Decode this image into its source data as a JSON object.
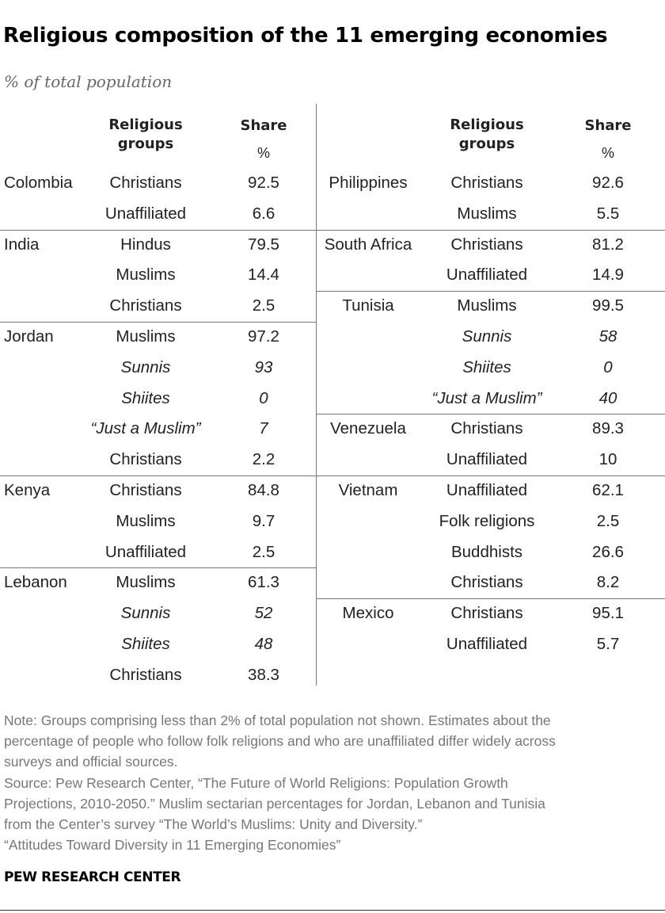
{
  "title": "Religious composition of the 11 emerging economies",
  "subtitle": "% of total population",
  "headers": {
    "groups": "Religious groups",
    "share": "Share",
    "unit": "%"
  },
  "left": [
    {
      "country": "Colombia",
      "rows": [
        {
          "group": "Christians",
          "share": "92.5",
          "italic": false
        },
        {
          "group": "Unaffiliated",
          "share": "6.6",
          "italic": false
        }
      ]
    },
    {
      "country": "India",
      "rows": [
        {
          "group": "Hindus",
          "share": "79.5",
          "italic": false
        },
        {
          "group": "Muslims",
          "share": "14.4",
          "italic": false
        },
        {
          "group": "Christians",
          "share": "2.5",
          "italic": false
        }
      ]
    },
    {
      "country": "Jordan",
      "rows": [
        {
          "group": "Muslims",
          "share": "97.2",
          "italic": false
        },
        {
          "group": "Sunnis",
          "share": "93",
          "italic": true
        },
        {
          "group": "Shiites",
          "share": "0",
          "italic": true
        },
        {
          "group": "“Just a Muslim”",
          "share": "7",
          "italic": true
        },
        {
          "group": "Christians",
          "share": "2.2",
          "italic": false
        }
      ]
    },
    {
      "country": "Kenya",
      "rows": [
        {
          "group": "Christians",
          "share": "84.8",
          "italic": false
        },
        {
          "group": "Muslims",
          "share": "9.7",
          "italic": false
        },
        {
          "group": "Unaffiliated",
          "share": "2.5",
          "italic": false
        }
      ]
    },
    {
      "country": "Lebanon",
      "rows": [
        {
          "group": "Muslims",
          "share": "61.3",
          "italic": false
        },
        {
          "group": "Sunnis",
          "share": "52",
          "italic": true
        },
        {
          "group": "Shiites",
          "share": "48",
          "italic": true
        },
        {
          "group": "Christians",
          "share": "38.3",
          "italic": false
        }
      ]
    }
  ],
  "right": [
    {
      "country": "Philippines",
      "rows": [
        {
          "group": "Christians",
          "share": "92.6",
          "italic": false
        },
        {
          "group": "Muslims",
          "share": "5.5",
          "italic": false
        }
      ]
    },
    {
      "country": "South Africa",
      "rows": [
        {
          "group": "Christians",
          "share": "81.2",
          "italic": false
        },
        {
          "group": "Unaffiliated",
          "share": "14.9",
          "italic": false
        }
      ]
    },
    {
      "country": "Tunisia",
      "rows": [
        {
          "group": "Muslims",
          "share": "99.5",
          "italic": false
        },
        {
          "group": "Sunnis",
          "share": "58",
          "italic": true
        },
        {
          "group": "Shiites",
          "share": "0",
          "italic": true
        },
        {
          "group": "“Just a Muslim”",
          "share": "40",
          "italic": true
        }
      ]
    },
    {
      "country": "Venezuela",
      "rows": [
        {
          "group": "Christians",
          "share": "89.3",
          "italic": false
        },
        {
          "group": "Unaffiliated",
          "share": "10",
          "italic": false
        }
      ]
    },
    {
      "country": "Vietnam",
      "rows": [
        {
          "group": "Unaffiliated",
          "share": "62.1",
          "italic": false
        },
        {
          "group": "Folk religions",
          "share": "2.5",
          "italic": false
        },
        {
          "group": "Buddhists",
          "share": "26.6",
          "italic": false
        },
        {
          "group": "Christians",
          "share": "8.2",
          "italic": false
        }
      ]
    },
    {
      "country": "Mexico",
      "rows": [
        {
          "group": "Christians",
          "share": "95.1",
          "italic": false
        },
        {
          "group": "Unaffiliated",
          "share": "5.7",
          "italic": false
        }
      ]
    }
  ],
  "notes": [
    "Note: Groups comprising less than 2% of total population not shown. Estimates about the",
    "percentage of people who follow folk religions and who are unaffiliated differ widely across",
    "surveys and official sources.",
    "Source: Pew Research Center, “The Future of World Religions: Population Growth",
    "Projections, 2010-2050.” Muslim sectarian percentages for Jordan, Lebanon and Tunisia",
    "from the Center’s survey “The World’s Muslims: Unity and Diversity.”",
    "“Attitudes Toward Diversity in 11 Emerging Economies”"
  ],
  "brand": "PEW RESEARCH CENTER"
}
